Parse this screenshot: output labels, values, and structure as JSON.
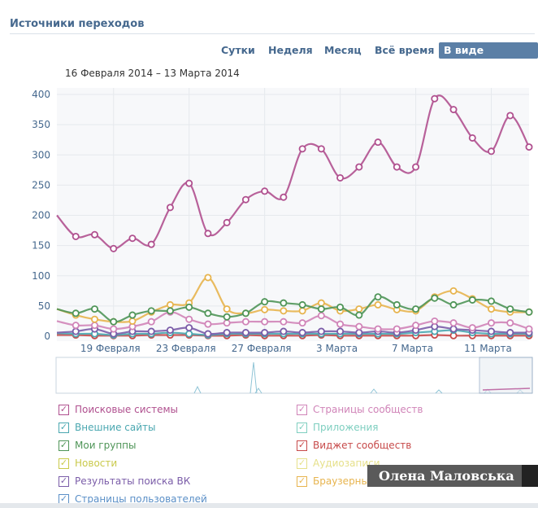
{
  "header": {
    "title": "Источники переходов"
  },
  "tabs": [
    {
      "label": "Сутки",
      "active": false
    },
    {
      "label": "Неделя",
      "active": false
    },
    {
      "label": "Месяц",
      "active": false
    },
    {
      "label": "Всё время",
      "active": false
    },
    {
      "label": "В виде графиков",
      "active": true
    }
  ],
  "date_range": "16 Февраля 2014 – 13 Марта 2014",
  "watermark": "Олена Маловська",
  "chart_data": {
    "type": "line",
    "title": "Источники переходов",
    "ylim": [
      0,
      400
    ],
    "yticks": [
      0,
      50,
      100,
      150,
      200,
      250,
      300,
      350,
      400
    ],
    "x_tick_labels": [
      {
        "day": 3,
        "label": "19 Февраля"
      },
      {
        "day": 7,
        "label": "23 Февраля"
      },
      {
        "day": 11,
        "label": "27 Февраля"
      },
      {
        "day": 15,
        "label": "3 Марта"
      },
      {
        "day": 19,
        "label": "7 Марта"
      },
      {
        "day": 23,
        "label": "11 Марта"
      }
    ],
    "x": [
      0,
      1,
      2,
      3,
      4,
      5,
      6,
      7,
      8,
      9,
      10,
      11,
      12,
      13,
      14,
      15,
      16,
      17,
      18,
      19,
      20,
      21,
      22,
      23,
      24,
      25
    ],
    "series": [
      {
        "name": "Поисковые системы",
        "color": "#b0508f",
        "values": [
          200,
          165,
          168,
          145,
          162,
          152,
          213,
          253,
          170,
          188,
          226,
          240,
          230,
          310,
          310,
          262,
          280,
          321,
          280,
          280,
          393,
          375,
          328,
          306,
          365,
          313
        ]
      },
      {
        "name": "Мои группы",
        "color": "#4f9558",
        "values": [
          45,
          38,
          45,
          24,
          35,
          42,
          42,
          48,
          38,
          32,
          38,
          57,
          55,
          52,
          45,
          48,
          35,
          65,
          52,
          45,
          63,
          52,
          60,
          58,
          45,
          40
        ]
      },
      {
        "name": "Браузерные закладки",
        "color": "#e7b44e",
        "values": [
          45,
          35,
          28,
          24,
          25,
          40,
          52,
          55,
          97,
          45,
          38,
          44,
          42,
          42,
          55,
          42,
          45,
          52,
          44,
          42,
          65,
          75,
          62,
          45,
          40,
          40
        ]
      },
      {
        "name": "Страницы сообществ",
        "color": "#d084b8",
        "values": [
          25,
          18,
          18,
          12,
          16,
          24,
          40,
          28,
          20,
          22,
          24,
          24,
          24,
          22,
          34,
          20,
          16,
          12,
          12,
          18,
          25,
          22,
          14,
          22,
          22,
          12
        ]
      },
      {
        "name": "Результаты поиска ВК",
        "color": "#7a5ca8",
        "values": [
          6,
          8,
          12,
          4,
          8,
          8,
          10,
          14,
          4,
          6,
          6,
          6,
          8,
          6,
          8,
          8,
          6,
          8,
          6,
          10,
          16,
          12,
          10,
          8,
          6,
          6
        ]
      },
      {
        "name": "Внешние сайты",
        "color": "#4aa7b0",
        "values": [
          5,
          4,
          4,
          2,
          4,
          4,
          6,
          4,
          2,
          4,
          4,
          4,
          4,
          4,
          4,
          4,
          4,
          4,
          4,
          6,
          8,
          10,
          6,
          4,
          4,
          4
        ]
      },
      {
        "name": "Виджет сообществ",
        "color": "#c74a4a",
        "values": [
          2,
          2,
          1,
          1,
          1,
          2,
          2,
          2,
          1,
          1,
          2,
          1,
          1,
          1,
          2,
          1,
          1,
          1,
          1,
          1,
          2,
          1,
          1,
          1,
          1,
          1
        ]
      }
    ]
  },
  "legend": {
    "left": [
      {
        "label": "Поисковые системы",
        "color": "#b0508f"
      },
      {
        "label": "Внешние сайты",
        "color": "#4aa7b0"
      },
      {
        "label": "Мои группы",
        "color": "#4f9558"
      },
      {
        "label": "Новости",
        "color": "#c9c94a"
      },
      {
        "label": "Результаты поиска ВК",
        "color": "#7a5ca8"
      },
      {
        "label": "Страницы пользователей",
        "color": "#5a8fc7"
      }
    ],
    "right": [
      {
        "label": "Страницы сообществ",
        "color": "#d084b8"
      },
      {
        "label": "Приложения",
        "color": "#7fcfc0"
      },
      {
        "label": "Виджет сообществ",
        "color": "#c74a4a"
      },
      {
        "label": "Аудиозаписи",
        "color": "#e6e08a"
      },
      {
        "label": "Браузерные закладки",
        "color": "#e7b44e"
      }
    ]
  }
}
